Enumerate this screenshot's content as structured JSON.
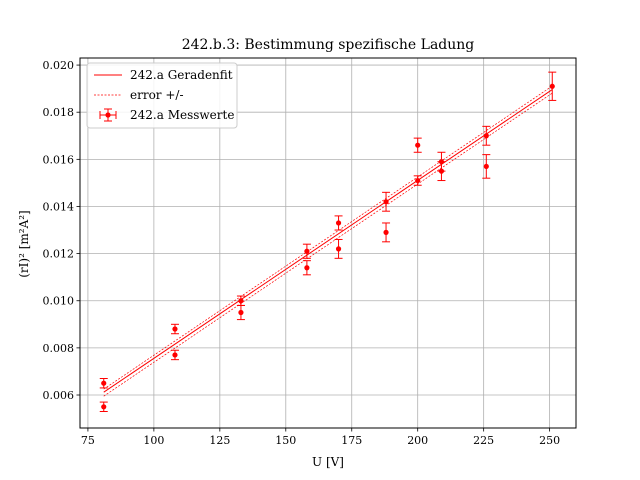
{
  "chart_data": {
    "type": "scatter",
    "title": "242.b.3: Bestimmung spezifische Ladung",
    "xlabel": "U [V]",
    "ylabel": "(rI)² [m²A²]",
    "xlim": [
      72,
      260
    ],
    "ylim": [
      0.0046,
      0.0203
    ],
    "xticks": [
      75,
      100,
      125,
      150,
      175,
      200,
      225,
      250
    ],
    "xtick_labels": [
      "75",
      "100",
      "125",
      "150",
      "175",
      "200",
      "225",
      "250"
    ],
    "yticks": [
      0.006,
      0.008,
      0.01,
      0.012,
      0.014,
      0.016,
      0.018,
      0.02
    ],
    "ytick_labels": [
      "0.006",
      "0.008",
      "0.010",
      "0.012",
      "0.014",
      "0.016",
      "0.018",
      "0.020"
    ],
    "grid": true,
    "legend_position": "top-left",
    "color": "#ff0000",
    "series": [
      {
        "name": "242.a Geradenfit",
        "kind": "line",
        "style": "solid",
        "x": [
          81,
          251
        ],
        "y": [
          0.00612,
          0.01896
        ]
      },
      {
        "name": "error +/-",
        "kind": "band",
        "style": "dashed",
        "x": [
          81,
          251
        ],
        "upper": [
          0.00625,
          0.01911
        ],
        "lower": [
          0.00595,
          0.01881
        ]
      },
      {
        "name": "242.a Messwerte",
        "kind": "errorbar",
        "x": [
          81,
          81,
          108,
          108,
          133,
          133,
          158,
          158,
          170,
          170,
          188,
          188,
          200,
          200,
          209,
          209,
          226,
          226,
          251
        ],
        "y": [
          0.0065,
          0.0055,
          0.0088,
          0.0077,
          0.01,
          0.0095,
          0.0121,
          0.0114,
          0.0133,
          0.0122,
          0.0142,
          0.0129,
          0.0166,
          0.0151,
          0.0159,
          0.0155,
          0.017,
          0.0157,
          0.0191
        ],
        "yerr": [
          0.0002,
          0.0002,
          0.0002,
          0.0002,
          0.0002,
          0.0003,
          0.0003,
          0.0003,
          0.0003,
          0.0004,
          0.0004,
          0.0004,
          0.0003,
          0.0002,
          0.0004,
          0.0004,
          0.0004,
          0.0005,
          0.0006
        ]
      }
    ]
  }
}
